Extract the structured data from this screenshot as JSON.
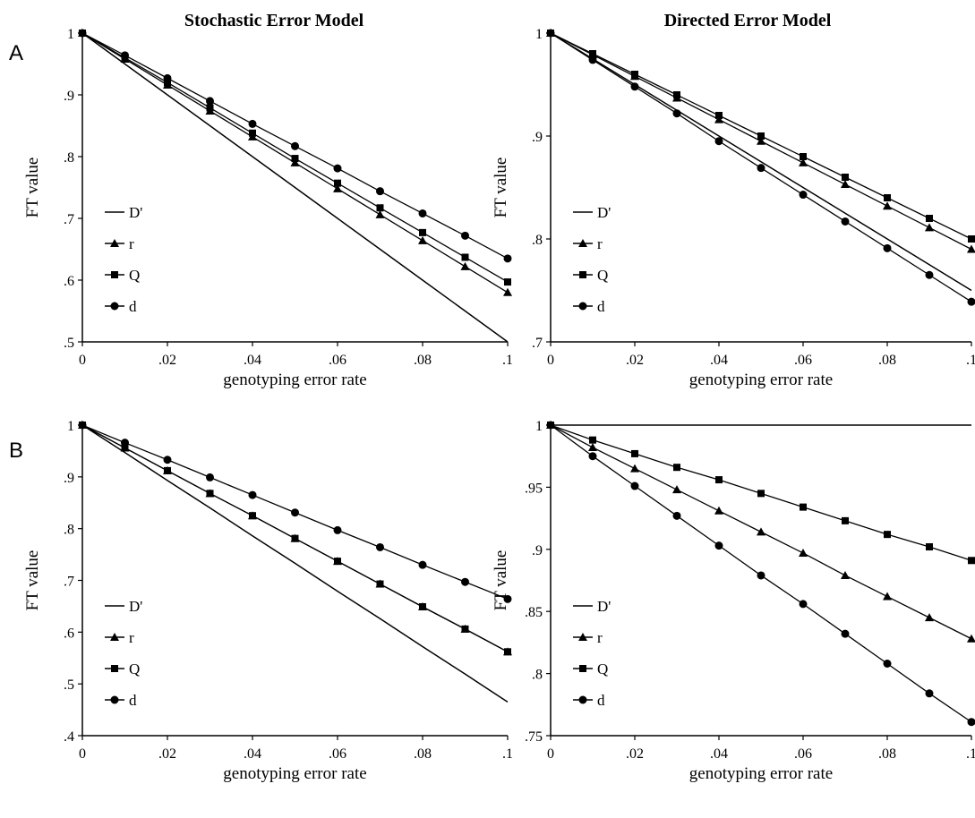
{
  "column_titles": [
    "Stochastic Error Model",
    "Directed Error Model"
  ],
  "row_labels": [
    "A",
    "B"
  ],
  "chart_data": [
    {
      "type": "line",
      "panel": "A-stochastic",
      "xlabel": "genotyping error rate",
      "ylabel": "FT value",
      "x": [
        0,
        0.01,
        0.02,
        0.03,
        0.04,
        0.05,
        0.06,
        0.07,
        0.08,
        0.09,
        0.1
      ],
      "x_ticks": [
        "0",
        ".02",
        ".04",
        ".06",
        ".08",
        ".1"
      ],
      "ylim": [
        0.5,
        1
      ],
      "y_ticks": [
        {
          "v": 0.5,
          "label": ".5"
        },
        {
          "v": 0.6,
          "label": ".6"
        },
        {
          "v": 0.7,
          "label": ".7"
        },
        {
          "v": 0.8,
          "label": ".8"
        },
        {
          "v": 0.9,
          "label": ".9"
        },
        {
          "v": 1.0,
          "label": "1"
        }
      ],
      "legend": "left-bottom",
      "series": [
        {
          "name": "D'",
          "marker": "none",
          "values": [
            1,
            0.95,
            0.9,
            0.85,
            0.8,
            0.75,
            0.7,
            0.65,
            0.6,
            0.55,
            0.5
          ]
        },
        {
          "name": "r",
          "marker": "triangle",
          "values": [
            1,
            0.958,
            0.916,
            0.874,
            0.832,
            0.79,
            0.748,
            0.706,
            0.664,
            0.622,
            0.58
          ]
        },
        {
          "name": "Q",
          "marker": "square",
          "values": [
            1,
            0.96,
            0.92,
            0.879,
            0.838,
            0.797,
            0.757,
            0.717,
            0.677,
            0.637,
            0.597
          ]
        },
        {
          "name": "d",
          "marker": "circle",
          "values": [
            1,
            0.964,
            0.927,
            0.89,
            0.853,
            0.817,
            0.781,
            0.744,
            0.708,
            0.672,
            0.635
          ]
        }
      ]
    },
    {
      "type": "line",
      "panel": "A-directed",
      "xlabel": "genotyping error rate",
      "ylabel": "FT value",
      "x": [
        0,
        0.01,
        0.02,
        0.03,
        0.04,
        0.05,
        0.06,
        0.07,
        0.08,
        0.09,
        0.1
      ],
      "x_ticks": [
        "0",
        ".02",
        ".04",
        ".06",
        ".08",
        ".1"
      ],
      "ylim": [
        0.7,
        1
      ],
      "y_ticks": [
        {
          "v": 0.7,
          "label": ".7"
        },
        {
          "v": 0.8,
          "label": ".8"
        },
        {
          "v": 0.9,
          "label": ".9"
        },
        {
          "v": 1.0,
          "label": "1"
        }
      ],
      "legend": "left-bottom",
      "series": [
        {
          "name": "D'",
          "marker": "none",
          "values": [
            1,
            0.975,
            0.95,
            0.925,
            0.9,
            0.875,
            0.85,
            0.825,
            0.8,
            0.775,
            0.75
          ]
        },
        {
          "name": "r",
          "marker": "triangle",
          "values": [
            1,
            0.979,
            0.958,
            0.937,
            0.916,
            0.895,
            0.874,
            0.853,
            0.832,
            0.811,
            0.79
          ]
        },
        {
          "name": "Q",
          "marker": "square",
          "values": [
            1,
            0.98,
            0.96,
            0.94,
            0.92,
            0.9,
            0.88,
            0.86,
            0.84,
            0.82,
            0.8
          ]
        },
        {
          "name": "d",
          "marker": "circle",
          "values": [
            1,
            0.974,
            0.948,
            0.922,
            0.895,
            0.869,
            0.843,
            0.817,
            0.791,
            0.765,
            0.739
          ]
        }
      ]
    },
    {
      "type": "line",
      "panel": "B-stochastic",
      "xlabel": "genotyping error rate",
      "ylabel": "FT value",
      "x": [
        0,
        0.01,
        0.02,
        0.03,
        0.04,
        0.05,
        0.06,
        0.07,
        0.08,
        0.09,
        0.1
      ],
      "x_ticks": [
        "0",
        ".02",
        ".04",
        ".06",
        ".08",
        ".1"
      ],
      "ylim": [
        0.4,
        1
      ],
      "y_ticks": [
        {
          "v": 0.4,
          "label": ".4"
        },
        {
          "v": 0.5,
          "label": ".5"
        },
        {
          "v": 0.6,
          "label": ".6"
        },
        {
          "v": 0.7,
          "label": ".7"
        },
        {
          "v": 0.8,
          "label": ".8"
        },
        {
          "v": 0.9,
          "label": ".9"
        },
        {
          "v": 1.0,
          "label": "1"
        }
      ],
      "legend": "left-bottom",
      "series": [
        {
          "name": "D'",
          "marker": "none",
          "values": [
            1,
            0.947,
            0.893,
            0.84,
            0.786,
            0.733,
            0.679,
            0.626,
            0.572,
            0.519,
            0.465
          ]
        },
        {
          "name": "r",
          "marker": "triangle",
          "values": [
            1,
            0.956,
            0.912,
            0.868,
            0.825,
            0.781,
            0.737,
            0.693,
            0.649,
            0.606,
            0.562
          ]
        },
        {
          "name": "Q",
          "marker": "square",
          "values": [
            1,
            0.956,
            0.912,
            0.868,
            0.825,
            0.781,
            0.737,
            0.693,
            0.649,
            0.606,
            0.562
          ]
        },
        {
          "name": "d",
          "marker": "circle",
          "values": [
            1,
            0.966,
            0.933,
            0.899,
            0.865,
            0.831,
            0.797,
            0.764,
            0.73,
            0.697,
            0.664
          ]
        }
      ]
    },
    {
      "type": "line",
      "panel": "B-directed",
      "xlabel": "genotyping error rate",
      "ylabel": "FT value",
      "x": [
        0,
        0.01,
        0.02,
        0.03,
        0.04,
        0.05,
        0.06,
        0.07,
        0.08,
        0.09,
        0.1
      ],
      "x_ticks": [
        "0",
        ".02",
        ".04",
        ".06",
        ".08",
        ".1"
      ],
      "ylim": [
        0.75,
        1
      ],
      "y_ticks": [
        {
          "v": 0.75,
          "label": ".75"
        },
        {
          "v": 0.8,
          "label": ".8"
        },
        {
          "v": 0.85,
          "label": ".85"
        },
        {
          "v": 0.9,
          "label": ".9"
        },
        {
          "v": 0.95,
          "label": ".95"
        },
        {
          "v": 1.0,
          "label": "1"
        }
      ],
      "legend": "left-bottom",
      "series": [
        {
          "name": "D'",
          "marker": "none",
          "values": [
            1,
            1,
            1,
            1,
            1,
            1,
            1,
            1,
            1,
            1,
            1
          ]
        },
        {
          "name": "r",
          "marker": "triangle",
          "values": [
            1,
            0.982,
            0.965,
            0.948,
            0.931,
            0.914,
            0.897,
            0.879,
            0.862,
            0.845,
            0.828
          ]
        },
        {
          "name": "Q",
          "marker": "square",
          "values": [
            1,
            0.988,
            0.977,
            0.966,
            0.956,
            0.945,
            0.934,
            0.923,
            0.912,
            0.902,
            0.891
          ]
        },
        {
          "name": "d",
          "marker": "circle",
          "values": [
            1,
            0.975,
            0.951,
            0.927,
            0.903,
            0.879,
            0.856,
            0.832,
            0.808,
            0.784,
            0.761
          ]
        }
      ]
    }
  ]
}
